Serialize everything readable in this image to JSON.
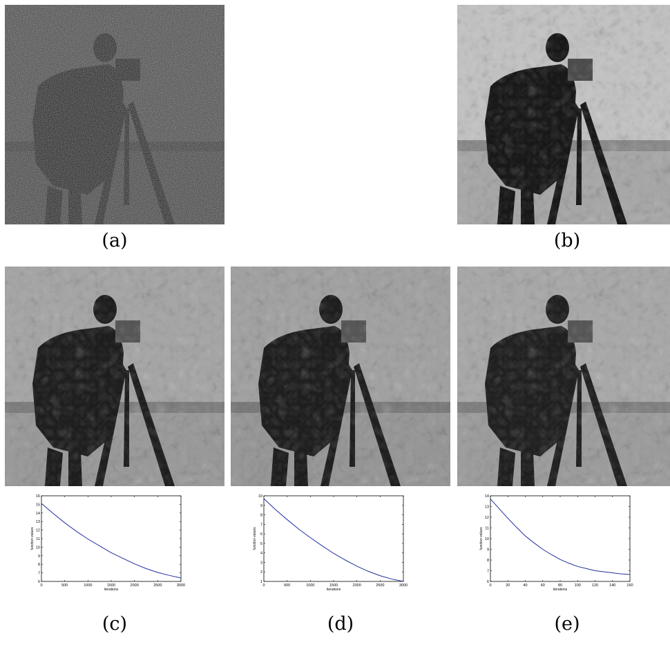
{
  "captions": {
    "a": "(a)",
    "b": "(b)",
    "c": "(c)",
    "d": "(d)",
    "e": "(e)"
  },
  "chart_data": [
    {
      "type": "line",
      "xlabel": "iterations",
      "ylabel": "function values",
      "xlim": [
        0,
        3000
      ],
      "ylim": [
        6,
        16
      ],
      "xticks": [
        0,
        500,
        1000,
        1500,
        2000,
        2500,
        3000
      ],
      "yticks": [
        6,
        7,
        8,
        9,
        10,
        11,
        12,
        13,
        14,
        15,
        16
      ],
      "x": [
        0,
        250,
        500,
        750,
        1000,
        1250,
        1500,
        1750,
        2000,
        2250,
        2500,
        2750,
        3000
      ],
      "y": [
        15.1,
        13.95,
        12.85,
        11.85,
        10.95,
        10.15,
        9.35,
        8.7,
        8.05,
        7.5,
        7.05,
        6.7,
        6.4
      ],
      "color": "#1f2e9c"
    },
    {
      "type": "line",
      "xlabel": "iterations",
      "ylabel": "function values",
      "xlim": [
        0,
        3000
      ],
      "ylim": [
        1,
        10
      ],
      "xticks": [
        0,
        500,
        1000,
        1500,
        2000,
        2500,
        3000
      ],
      "yticks": [
        1,
        2,
        3,
        4,
        5,
        6,
        7,
        8,
        9,
        10
      ],
      "x": [
        0,
        250,
        500,
        750,
        1000,
        1250,
        1500,
        1750,
        2000,
        2250,
        2500,
        2750,
        3000
      ],
      "y": [
        9.7,
        8.55,
        7.5,
        6.5,
        5.6,
        4.75,
        3.95,
        3.25,
        2.6,
        2.05,
        1.6,
        1.25,
        1.0
      ],
      "color": "#1f2e9c"
    },
    {
      "type": "line",
      "xlabel": "iterations",
      "ylabel": "function values",
      "xlim": [
        0,
        160
      ],
      "ylim": [
        6,
        14
      ],
      "xticks": [
        0,
        20,
        40,
        60,
        80,
        100,
        120,
        140,
        160
      ],
      "yticks": [
        6,
        7,
        8,
        9,
        10,
        11,
        12,
        13,
        14
      ],
      "x": [
        0,
        10,
        20,
        30,
        40,
        50,
        60,
        70,
        80,
        90,
        100,
        110,
        120,
        130,
        140,
        150,
        160
      ],
      "y": [
        13.7,
        12.8,
        11.9,
        11.05,
        10.25,
        9.6,
        9.0,
        8.5,
        8.05,
        7.7,
        7.4,
        7.2,
        7.0,
        6.9,
        6.8,
        6.7,
        6.65
      ],
      "color": "#1f2e9c"
    }
  ]
}
